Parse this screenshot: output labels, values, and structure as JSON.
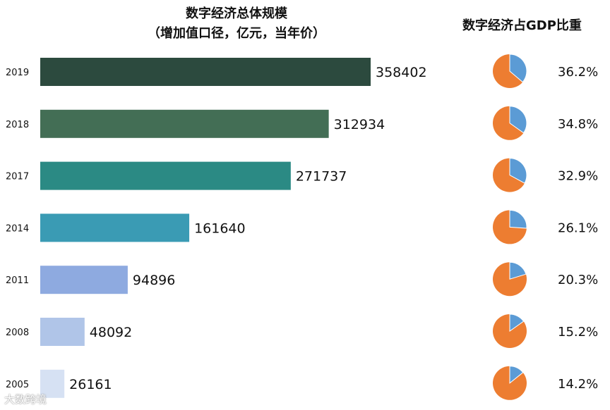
{
  "chart_data": [
    {
      "type": "bar",
      "orientation": "horizontal",
      "title": "数字经济总体规模",
      "subtitle": "（增加值口径，亿元，当年价）",
      "categories": [
        "2019",
        "2018",
        "2017",
        "2014",
        "2011",
        "2008",
        "2005"
      ],
      "values": [
        358402,
        312934,
        271737,
        161640,
        94896,
        48092,
        26161
      ],
      "value_labels": [
        "358402",
        "312934",
        "271737",
        "161640",
        "94896",
        "48092",
        "26161"
      ],
      "bar_colors": [
        "#2c4a3e",
        "#436e55",
        "#2b8a84",
        "#3a9bb4",
        "#8eaae0",
        "#b0c5e8",
        "#d6e1f3"
      ],
      "xlim": [
        0,
        400000
      ],
      "grid": false,
      "legend": "none"
    },
    {
      "type": "pie",
      "title": "数字经济占GDP比重",
      "categories": [
        "2019",
        "2018",
        "2017",
        "2014",
        "2011",
        "2008",
        "2005"
      ],
      "values": [
        36.2,
        34.8,
        32.9,
        26.1,
        20.3,
        15.2,
        14.2
      ],
      "value_labels": [
        "36.2%",
        "34.8%",
        "32.9%",
        "26.1%",
        "20.3%",
        "15.2%",
        "14.2%"
      ],
      "share_color": "#5b9bd5",
      "rest_color": "#ed7d31"
    }
  ],
  "watermark": "大数跨境"
}
